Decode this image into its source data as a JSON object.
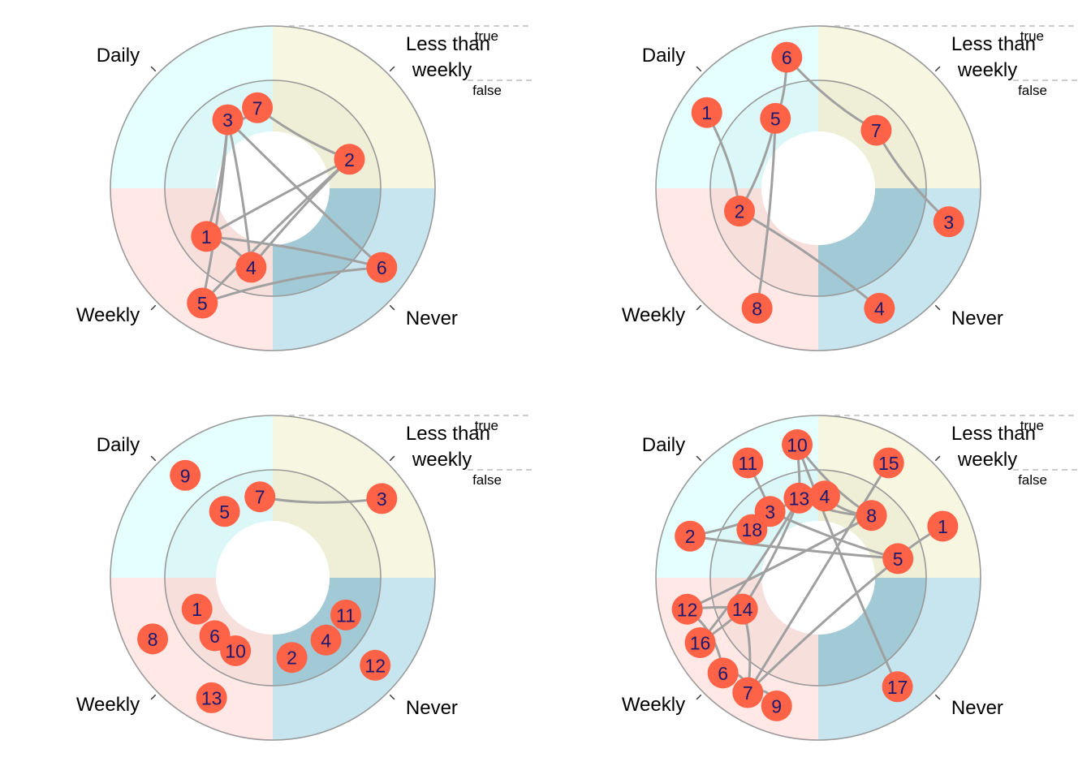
{
  "colors": {
    "daily": "#e0ffff",
    "less_than_weekly": "#f5f5dc",
    "never": "#add8e6",
    "weekly": "#ffe4e1",
    "ring_line": "#999999",
    "edge": "#a0a0a0",
    "node_fill": "#ff6347",
    "node_text": "#191970",
    "dashed": "#bbbbbb"
  },
  "chart_data": [
    {
      "type": "radial-network",
      "sectors": [
        "Daily",
        "Less than weekly",
        "Never",
        "Weekly"
      ],
      "ring_labels": {
        "outer": "true",
        "inner": "false"
      },
      "nodes": [
        {
          "id": "7",
          "sector": "Daily",
          "ring": "inner",
          "angle": 0.88
        },
        {
          "id": "3",
          "sector": "Daily",
          "ring": "inner",
          "angle": 0.63
        },
        {
          "id": "2",
          "sector": "Less than weekly",
          "ring": "inner",
          "angle": 0.77
        },
        {
          "id": "4",
          "sector": "Weekly",
          "ring": "inner",
          "angle": 0.17
        },
        {
          "id": "1",
          "sector": "Weekly",
          "ring": "inner",
          "angle": 0.6
        },
        {
          "id": "5",
          "sector": "Weekly",
          "ring": "outer",
          "angle": 0.35
        },
        {
          "id": "6",
          "sector": "Never",
          "ring": "outer",
          "angle": 0.4
        }
      ],
      "edges": [
        [
          "7",
          "2"
        ],
        [
          "7",
          "3"
        ],
        [
          "3",
          "4"
        ],
        [
          "3",
          "5"
        ],
        [
          "3",
          "1"
        ],
        [
          "3",
          "6"
        ],
        [
          "4",
          "2"
        ],
        [
          "5",
          "2"
        ],
        [
          "1",
          "2"
        ],
        [
          "1",
          "6"
        ],
        [
          "5",
          "6"
        ],
        [
          "4",
          "1"
        ]
      ]
    },
    {
      "type": "radial-network",
      "sectors": [
        "Daily",
        "Less than weekly",
        "Never",
        "Weekly"
      ],
      "ring_labels": {
        "outer": "true",
        "inner": "false"
      },
      "nodes": [
        {
          "id": "6",
          "sector": "Daily",
          "ring": "outer",
          "angle": 0.85
        },
        {
          "id": "1",
          "sector": "Daily",
          "ring": "outer",
          "angle": 0.38
        },
        {
          "id": "5",
          "sector": "Daily",
          "ring": "inner",
          "angle": 0.65
        },
        {
          "id": "7",
          "sector": "Less than weekly",
          "ring": "inner",
          "angle": 0.5
        },
        {
          "id": "3",
          "sector": "Never",
          "ring": "outer",
          "angle": 0.16
        },
        {
          "id": "4",
          "sector": "Never",
          "ring": "outer",
          "angle": 0.7
        },
        {
          "id": "2",
          "sector": "Weekly",
          "ring": "inner",
          "angle": 0.82
        },
        {
          "id": "8",
          "sector": "Weekly",
          "ring": "outer",
          "angle": 0.3
        }
      ],
      "edges": [
        [
          "6",
          "7"
        ],
        [
          "6",
          "5"
        ],
        [
          "1",
          "2"
        ],
        [
          "5",
          "2"
        ],
        [
          "5",
          "8"
        ],
        [
          "7",
          "3"
        ],
        [
          "2",
          "4"
        ]
      ]
    },
    {
      "type": "radial-network",
      "sectors": [
        "Daily",
        "Less than weekly",
        "Never",
        "Weekly"
      ],
      "ring_labels": {
        "outer": "true",
        "inner": "false"
      },
      "nodes": [
        {
          "id": "9",
          "sector": "Daily",
          "ring": "outer",
          "angle": 0.55
        },
        {
          "id": "7",
          "sector": "Daily",
          "ring": "inner",
          "angle": 0.9
        },
        {
          "id": "5",
          "sector": "Daily",
          "ring": "inner",
          "angle": 0.6
        },
        {
          "id": "3",
          "sector": "Less than weekly",
          "ring": "outer",
          "angle": 0.6
        },
        {
          "id": "11",
          "sector": "Never",
          "ring": "inner",
          "angle": 0.3
        },
        {
          "id": "4",
          "sector": "Never",
          "ring": "inner",
          "angle": 0.55
        },
        {
          "id": "2",
          "sector": "Never",
          "ring": "inner",
          "angle": 0.85
        },
        {
          "id": "12",
          "sector": "Never",
          "ring": "outer",
          "angle": 0.45
        },
        {
          "id": "10",
          "sector": "Weekly",
          "ring": "inner",
          "angle": 0.3
        },
        {
          "id": "6",
          "sector": "Weekly",
          "ring": "inner",
          "angle": 0.5
        },
        {
          "id": "1",
          "sector": "Weekly",
          "ring": "inner",
          "angle": 0.75
        },
        {
          "id": "13",
          "sector": "Weekly",
          "ring": "outer",
          "angle": 0.3
        },
        {
          "id": "8",
          "sector": "Weekly",
          "ring": "outer",
          "angle": 0.7
        }
      ],
      "edges": [
        [
          "7",
          "3"
        ]
      ]
    },
    {
      "type": "radial-network",
      "sectors": [
        "Daily",
        "Less than weekly",
        "Never",
        "Weekly"
      ],
      "ring_labels": {
        "outer": "true",
        "inner": "false"
      },
      "nodes": [
        {
          "id": "10",
          "sector": "Daily",
          "ring": "outer",
          "angle": 0.9
        },
        {
          "id": "11",
          "sector": "Daily",
          "ring": "outer",
          "angle": 0.65
        },
        {
          "id": "2",
          "sector": "Daily",
          "ring": "outer",
          "angle": 0.2
        },
        {
          "id": "13",
          "sector": "Daily",
          "ring": "inner",
          "angle": 0.85
        },
        {
          "id": "4",
          "sector": "Less than weekly",
          "ring": "inner",
          "angle": 0.05
        },
        {
          "id": "3",
          "sector": "Daily",
          "ring": "inner",
          "angle": 0.6
        },
        {
          "id": "18",
          "sector": "Daily",
          "ring": "inner",
          "angle": 0.4
        },
        {
          "id": "15",
          "sector": "Less than weekly",
          "ring": "outer",
          "angle": 0.35
        },
        {
          "id": "8",
          "sector": "Less than weekly",
          "ring": "inner",
          "angle": 0.45
        },
        {
          "id": "1",
          "sector": "Less than weekly",
          "ring": "outer",
          "angle": 0.75
        },
        {
          "id": "5",
          "sector": "Less than weekly",
          "ring": "inner",
          "angle": 0.85
        },
        {
          "id": "17",
          "sector": "Never",
          "ring": "outer",
          "angle": 0.6
        },
        {
          "id": "9",
          "sector": "Weekly",
          "ring": "outer",
          "angle": 0.2
        },
        {
          "id": "7",
          "sector": "Weekly",
          "ring": "outer",
          "angle": 0.35
        },
        {
          "id": "14",
          "sector": "Weekly",
          "ring": "inner",
          "angle": 0.75
        },
        {
          "id": "6",
          "sector": "Weekly",
          "ring": "outer",
          "angle": 0.5
        },
        {
          "id": "16",
          "sector": "Weekly",
          "ring": "outer",
          "angle": 0.68
        },
        {
          "id": "12",
          "sector": "Weekly",
          "ring": "outer",
          "angle": 0.85
        }
      ],
      "edges": [
        [
          "10",
          "13"
        ],
        [
          "10",
          "8"
        ],
        [
          "10",
          "17"
        ],
        [
          "11",
          "3"
        ],
        [
          "2",
          "13"
        ],
        [
          "2",
          "5"
        ],
        [
          "13",
          "8"
        ],
        [
          "4",
          "13"
        ],
        [
          "4",
          "8"
        ],
        [
          "3",
          "5"
        ],
        [
          "13",
          "14"
        ],
        [
          "13",
          "16"
        ],
        [
          "15",
          "7"
        ],
        [
          "1",
          "5"
        ],
        [
          "5",
          "7"
        ],
        [
          "9",
          "7"
        ],
        [
          "7",
          "6"
        ],
        [
          "7",
          "14"
        ],
        [
          "6",
          "12"
        ],
        [
          "14",
          "16"
        ],
        [
          "14",
          "12"
        ],
        [
          "8",
          "12"
        ]
      ]
    }
  ]
}
